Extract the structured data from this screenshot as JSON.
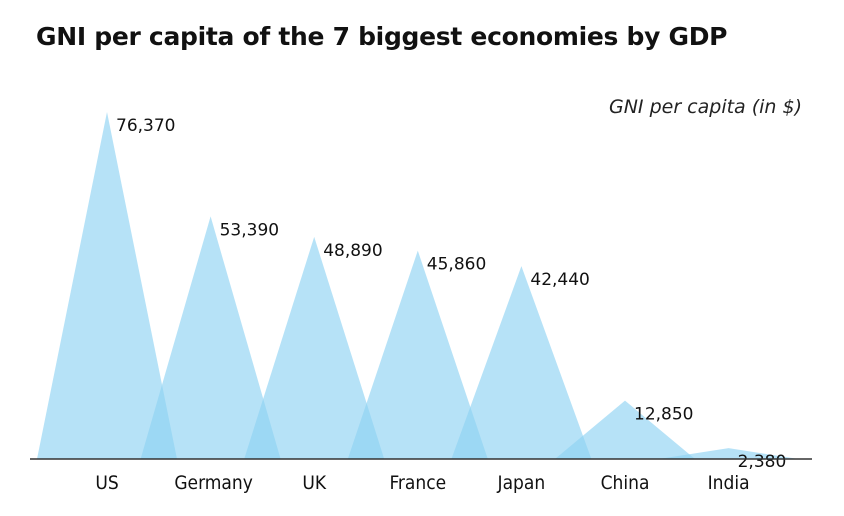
{
  "chart_data": {
    "type": "area",
    "title": "GNI per capita of the 7 biggest economies by GDP",
    "ylabel": "GNI per capita (in $)",
    "categories": [
      "US",
      "Germany",
      "UK",
      "France",
      "Japan",
      "China",
      "India"
    ],
    "values": [
      76370,
      53390,
      48890,
      45860,
      42440,
      12850,
      2380
    ],
    "data_labels": [
      "76,370",
      "53,390",
      "48,890",
      "45,860",
      "42,440",
      "12,850",
      "2,380"
    ],
    "ylim": [
      0,
      76370
    ],
    "grid": false,
    "color": "#8fd3f3"
  }
}
